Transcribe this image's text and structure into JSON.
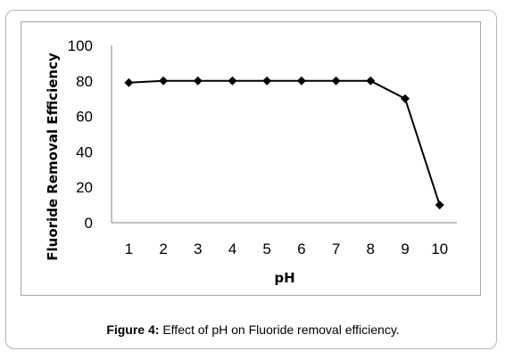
{
  "caption": {
    "label": "Figure 4:",
    "text": "Effect of pH on Fluoride removal efficiency."
  },
  "chart_data": {
    "type": "line",
    "xlabel": "pH",
    "ylabel": "Fluoride Removal Efficiency",
    "categories": [
      "1",
      "2",
      "3",
      "4",
      "5",
      "6",
      "7",
      "8",
      "9",
      "10"
    ],
    "series": [
      {
        "values": [
          79,
          80,
          80,
          80,
          80,
          80,
          80,
          80,
          70,
          10
        ]
      }
    ],
    "ylim": [
      0,
      100
    ],
    "yticks": [
      "0",
      "20",
      "40",
      "60",
      "80",
      "100"
    ],
    "grid": false,
    "legend": "none",
    "line_color": "#000000",
    "marker": "diamond"
  }
}
